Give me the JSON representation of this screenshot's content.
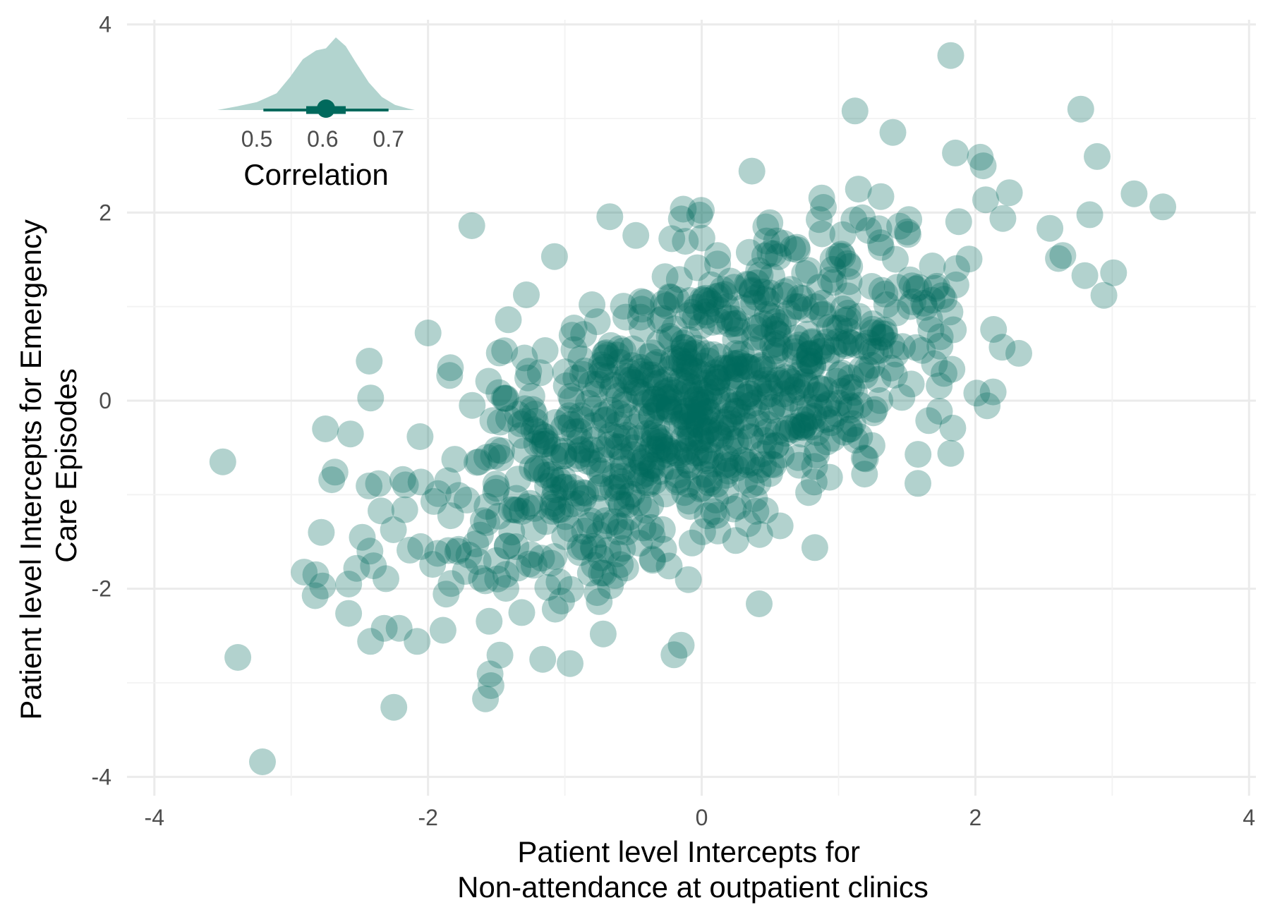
{
  "chart_data": [
    {
      "type": "scatter",
      "xlabel": [
        "Patient level Intercepts for",
        "Non-attendance at outpatient clinics"
      ],
      "ylabel": [
        "Patient level Intercepts for Emergency",
        "Care Episodes"
      ],
      "xlim": [
        -4.2,
        4.05
      ],
      "ylim": [
        -4.2,
        4.05
      ],
      "x_ticks": [
        -4,
        -2,
        0,
        2,
        4
      ],
      "y_ticks": [
        -4,
        -2,
        0,
        2,
        4
      ],
      "tick_labels_x": [
        "-4",
        "-2",
        "0",
        "2",
        "4"
      ],
      "tick_labels_y": [
        "-4",
        "-2",
        "0",
        "2",
        "4"
      ],
      "grid": true,
      "point_color": "#00695c",
      "point_opacity": 0.3,
      "n_points": 1000,
      "correlation": 0.62,
      "outliers": [
        [
          1.82,
          3.67
        ],
        [
          2.77,
          3.1
        ],
        [
          1.12,
          3.08
        ],
        [
          -1.68,
          1.86
        ],
        [
          3.16,
          2.2
        ],
        [
          3.37,
          2.06
        ],
        [
          -3.5,
          -0.65
        ],
        [
          -2.75,
          -0.3
        ],
        [
          -2.68,
          -0.76
        ],
        [
          -3.39,
          -2.73
        ],
        [
          -3.21,
          -3.84
        ],
        [
          -2.25,
          -3.26
        ],
        [
          -1.58,
          -3.17
        ],
        [
          -1.54,
          -3.03
        ],
        [
          -2.08,
          -2.56
        ],
        [
          -0.15,
          -2.6
        ],
        [
          0.42,
          -2.16
        ],
        [
          -0.72,
          -2.48
        ],
        [
          -2.0,
          0.72
        ],
        [
          -2.43,
          0.42
        ],
        [
          2.8,
          1.33
        ],
        [
          3.01,
          1.36
        ],
        [
          2.01,
          0.08
        ],
        [
          1.82,
          -0.56
        ],
        [
          1.58,
          -0.88
        ],
        [
          -2.78,
          -1.4
        ],
        [
          -2.82,
          -1.85
        ],
        [
          -2.77,
          -1.97
        ],
        [
          -2.58,
          -1.95
        ],
        [
          -2.42,
          -2.56
        ],
        [
          -2.32,
          -2.42
        ]
      ]
    },
    {
      "type": "area",
      "xlabel": "Correlation",
      "x_ticks": [
        0.5,
        0.6,
        0.7
      ],
      "tick_labels_x": [
        "0.5",
        "0.6",
        "0.7"
      ],
      "xlim": [
        0.44,
        0.74
      ],
      "density_x": [
        0.44,
        0.47,
        0.5,
        0.53,
        0.55,
        0.57,
        0.59,
        0.605,
        0.62,
        0.635,
        0.65,
        0.67,
        0.69,
        0.71,
        0.73,
        0.74
      ],
      "density_y": [
        0.0,
        0.05,
        0.11,
        0.23,
        0.45,
        0.7,
        0.82,
        0.85,
        1.0,
        0.88,
        0.66,
        0.38,
        0.18,
        0.07,
        0.02,
        0.0
      ],
      "fill_color": "#b2d4cf",
      "point_estimate": 0.605,
      "interval_66": [
        0.575,
        0.635
      ],
      "interval_95": [
        0.51,
        0.7
      ],
      "interval_color": "#00695c"
    }
  ]
}
